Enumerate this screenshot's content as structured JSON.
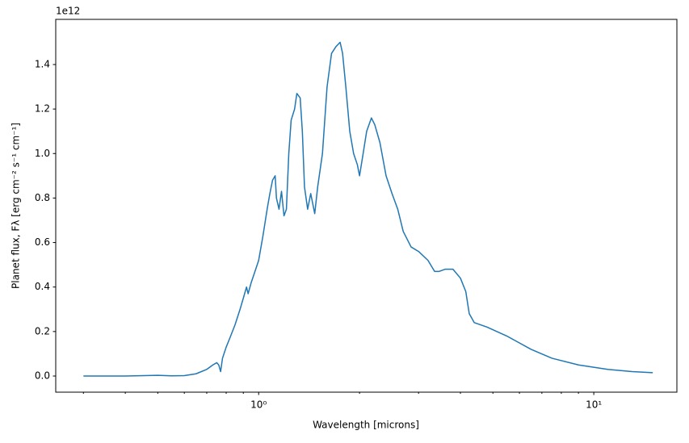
{
  "chart_data": {
    "type": "line",
    "xlabel": "Wavelength [microns]",
    "ylabel": "Planet flux, Fλ [erg cm⁻² s⁻¹ cm⁻¹]",
    "y_offset_text": "1e12",
    "color": "#1f77b4",
    "xscale": "log",
    "x": [
      0.3,
      0.4,
      0.5,
      0.55,
      0.6,
      0.65,
      0.7,
      0.73,
      0.75,
      0.76,
      0.77,
      0.78,
      0.8,
      0.82,
      0.85,
      0.88,
      0.9,
      0.92,
      0.93,
      0.95,
      0.98,
      1.0,
      1.03,
      1.06,
      1.08,
      1.1,
      1.12,
      1.13,
      1.15,
      1.17,
      1.19,
      1.21,
      1.23,
      1.25,
      1.28,
      1.3,
      1.33,
      1.35,
      1.37,
      1.4,
      1.43,
      1.47,
      1.5,
      1.55,
      1.6,
      1.65,
      1.7,
      1.75,
      1.78,
      1.82,
      1.87,
      1.92,
      1.97,
      2.0,
      2.05,
      2.1,
      2.17,
      2.22,
      2.3,
      2.4,
      2.5,
      2.6,
      2.7,
      2.85,
      3.0,
      3.2,
      3.35,
      3.45,
      3.6,
      3.8,
      4.0,
      4.15,
      4.25,
      4.4,
      4.8,
      5.5,
      6.5,
      7.5,
      9,
      11,
      13,
      15
    ],
    "values": [
      0,
      0,
      0.003,
      0.001,
      0.002,
      0.01,
      0.03,
      0.05,
      0.06,
      0.05,
      0.02,
      0.08,
      0.13,
      0.17,
      0.23,
      0.3,
      0.35,
      0.4,
      0.37,
      0.42,
      0.48,
      0.52,
      0.63,
      0.75,
      0.82,
      0.88,
      0.9,
      0.8,
      0.75,
      0.83,
      0.72,
      0.75,
      1.0,
      1.15,
      1.2,
      1.27,
      1.25,
      1.1,
      0.85,
      0.75,
      0.82,
      0.73,
      0.85,
      1.0,
      1.3,
      1.45,
      1.48,
      1.5,
      1.45,
      1.3,
      1.1,
      1.0,
      0.95,
      0.9,
      1.0,
      1.1,
      1.16,
      1.13,
      1.05,
      0.9,
      0.82,
      0.75,
      0.65,
      0.58,
      0.56,
      0.52,
      0.47,
      0.47,
      0.48,
      0.48,
      0.44,
      0.38,
      0.28,
      0.24,
      0.22,
      0.18,
      0.12,
      0.08,
      0.05,
      0.03,
      0.02,
      0.015
    ],
    "xlim": [
      0.248,
      17.7
    ],
    "xticks": [
      {
        "value": 1,
        "label": "10⁰"
      },
      {
        "value": 10,
        "label": "10¹"
      }
    ],
    "xminorticks": [
      0.3,
      0.4,
      0.5,
      0.6,
      0.7,
      0.8,
      0.9,
      2,
      3,
      4,
      5,
      6,
      7,
      8,
      9
    ],
    "ylim": [
      -0.0725,
      1.603
    ],
    "yticks": [
      {
        "value": 0,
        "label": "0.0"
      },
      0.2,
      0.4,
      0.6,
      0.8,
      {
        "value": 1,
        "label": "1.0"
      },
      1.2,
      1.4
    ]
  }
}
